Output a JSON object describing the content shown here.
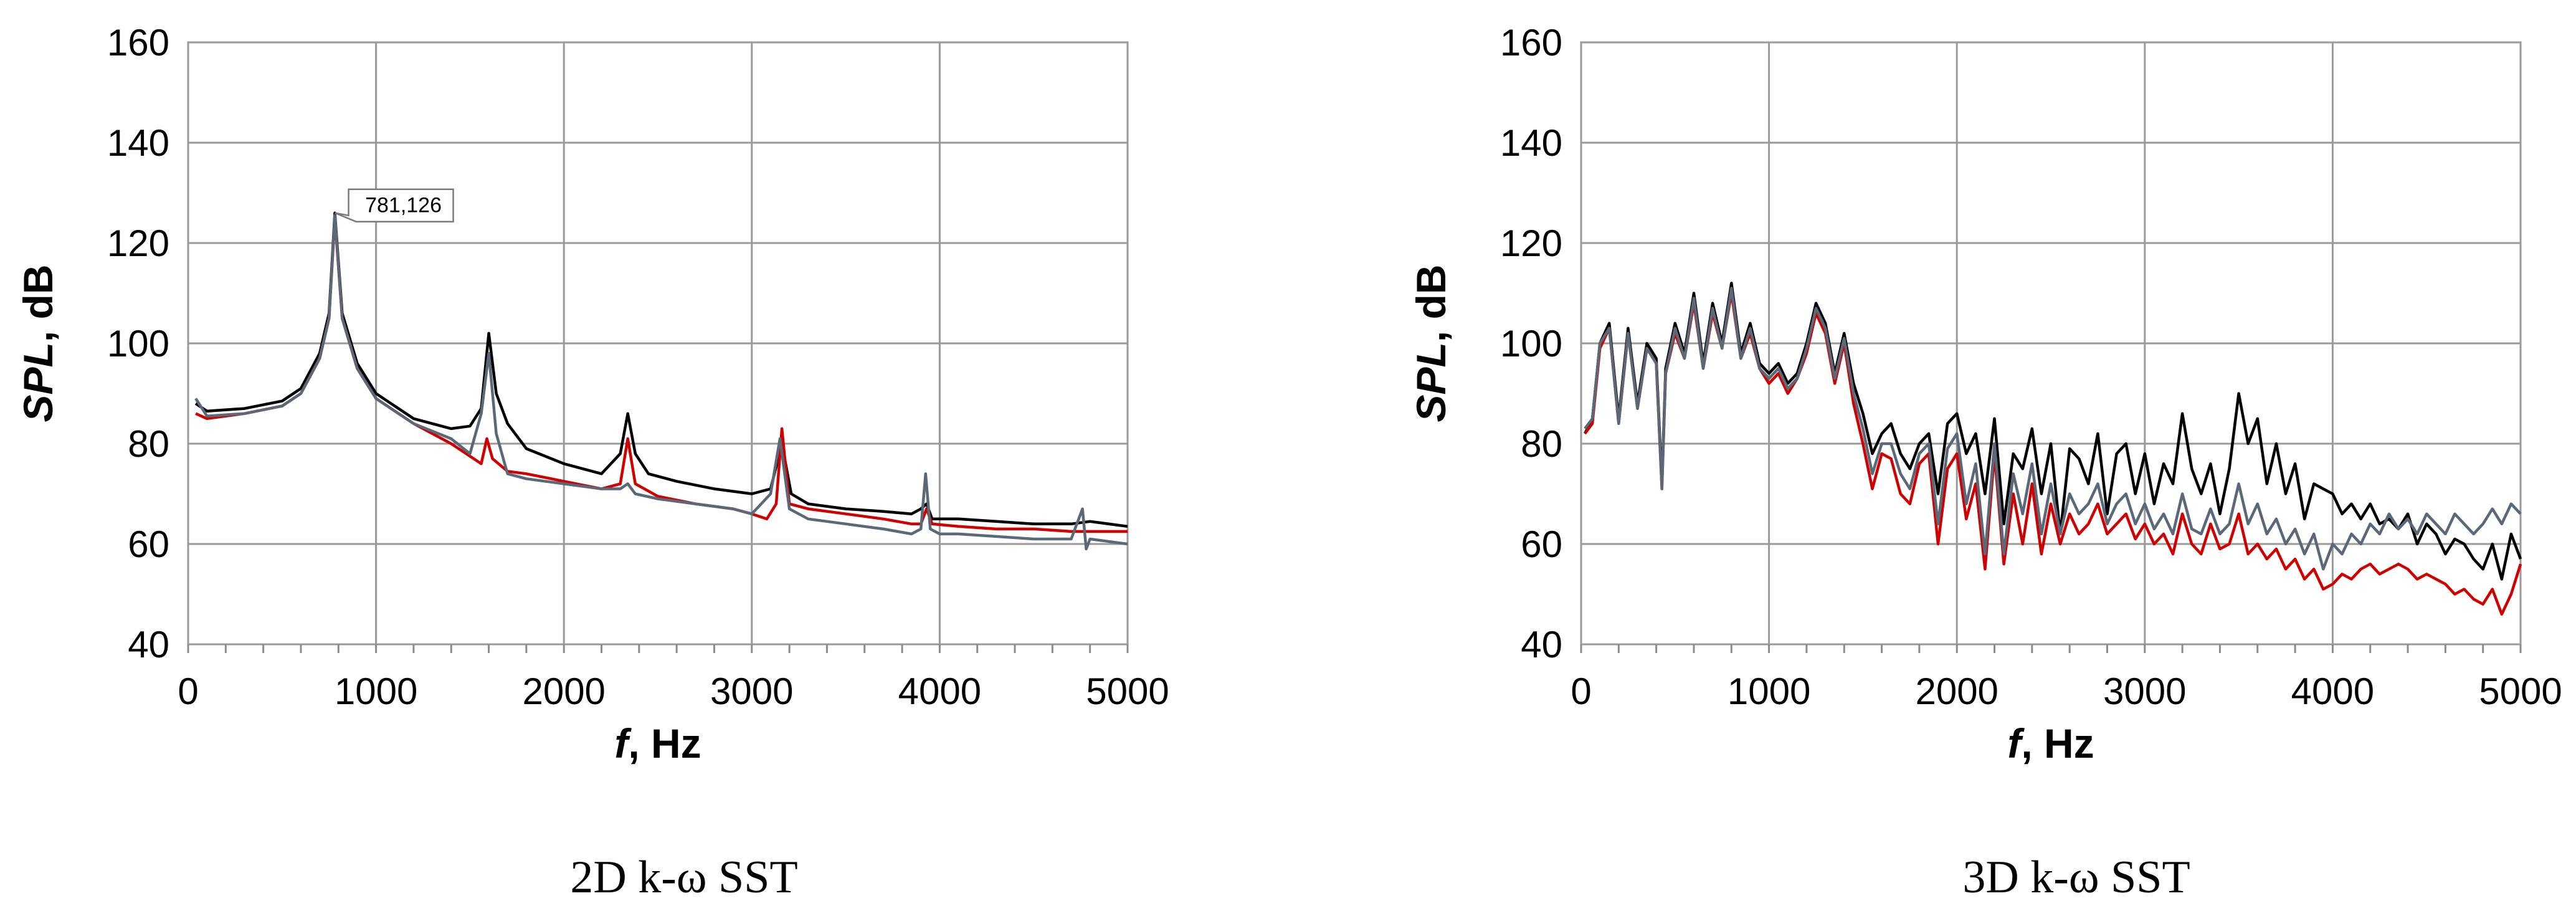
{
  "chart_data": [
    {
      "type": "line",
      "caption": "2D k-ω SST",
      "xlabel_italic": "f",
      "xlabel_rest": ", Hz",
      "ylabel_italic": "SPL",
      "ylabel_rest": ", dB",
      "xlim": [
        0,
        5000
      ],
      "ylim": [
        40,
        160
      ],
      "xticks": [
        0,
        1000,
        2000,
        3000,
        4000,
        5000
      ],
      "yticks": [
        40,
        60,
        80,
        100,
        120,
        140,
        160
      ],
      "grid": true,
      "annotations": [
        {
          "label": "781,126",
          "x": 781,
          "y": 126
        }
      ],
      "series": [
        {
          "color": "#000000",
          "x": [
            40,
            100,
            300,
            500,
            600,
            700,
            750,
            781,
            820,
            900,
            1000,
            1200,
            1400,
            1500,
            1560,
            1600,
            1640,
            1700,
            1800,
            2000,
            2200,
            2300,
            2340,
            2380,
            2450,
            2600,
            2800,
            3000,
            3100,
            3160,
            3210,
            3300,
            3500,
            3700,
            3850,
            3900,
            3930,
            3960,
            4100,
            4300,
            4500,
            4700,
            4800,
            5000
          ],
          "y": [
            88,
            86.5,
            87,
            88.5,
            91,
            98,
            106,
            126,
            106,
            96,
            90,
            85,
            83,
            83.5,
            87,
            102,
            90,
            84,
            79,
            76,
            74,
            78,
            86,
            78,
            74,
            72.5,
            71,
            70,
            71,
            80,
            70,
            68,
            67,
            66.5,
            66,
            67,
            68,
            65,
            65,
            64.5,
            64,
            64,
            64.5,
            63.5
          ]
        },
        {
          "color": "#d00000",
          "x": [
            40,
            100,
            300,
            500,
            600,
            700,
            750,
            781,
            820,
            900,
            1000,
            1200,
            1400,
            1500,
            1560,
            1590,
            1620,
            1700,
            1800,
            2000,
            2200,
            2300,
            2340,
            2380,
            2500,
            2700,
            2900,
            3000,
            3080,
            3130,
            3160,
            3200,
            3300,
            3500,
            3700,
            3850,
            3900,
            3930,
            3960,
            4100,
            4300,
            4500,
            4700,
            4800,
            5000
          ],
          "y": [
            86,
            85,
            86,
            87.5,
            90,
            97,
            105,
            125,
            105,
            95,
            89,
            84,
            80,
            77.5,
            76,
            81,
            77,
            74.5,
            74,
            72.5,
            71,
            72,
            81,
            72,
            69.5,
            68,
            67,
            66,
            65,
            68,
            83,
            68,
            67,
            66,
            65,
            64,
            64,
            67,
            64,
            63.5,
            63,
            63,
            62.5,
            62.5,
            62.5
          ]
        },
        {
          "color": "#5b6878",
          "x": [
            40,
            100,
            300,
            500,
            600,
            700,
            750,
            781,
            820,
            900,
            1000,
            1200,
            1400,
            1500,
            1560,
            1600,
            1640,
            1700,
            1800,
            2000,
            2200,
            2300,
            2340,
            2380,
            2500,
            2700,
            2900,
            3000,
            3100,
            3150,
            3200,
            3300,
            3500,
            3700,
            3850,
            3900,
            3925,
            3950,
            4000,
            4100,
            4300,
            4500,
            4700,
            4760,
            4780,
            4800,
            5000
          ],
          "y": [
            89,
            85.5,
            86,
            87.5,
            90,
            97,
            105,
            125.5,
            105,
            95,
            89,
            84,
            81,
            78,
            86,
            98,
            82,
            74,
            73,
            72,
            71,
            71,
            72,
            70,
            69,
            68,
            67,
            66,
            70,
            81,
            67,
            65,
            64,
            63,
            62,
            63,
            74,
            63,
            62,
            62,
            61.5,
            61,
            61,
            67,
            59,
            61,
            60
          ]
        }
      ]
    },
    {
      "type": "line",
      "caption": "3D k-ω SST",
      "xlabel_italic": "f",
      "xlabel_rest": ", Hz",
      "ylabel_italic": "SPL",
      "ylabel_rest": ", dB",
      "xlim": [
        0,
        5000
      ],
      "ylim": [
        40,
        160
      ],
      "xticks": [
        0,
        1000,
        2000,
        3000,
        4000,
        5000
      ],
      "yticks": [
        40,
        60,
        80,
        100,
        120,
        140,
        160
      ],
      "grid": true,
      "series": [
        {
          "color": "#000000",
          "x": [
            20,
            60,
            100,
            150,
            200,
            250,
            300,
            350,
            400,
            430,
            450,
            500,
            550,
            600,
            650,
            700,
            750,
            800,
            850,
            900,
            950,
            1000,
            1050,
            1100,
            1150,
            1200,
            1250,
            1300,
            1350,
            1400,
            1450,
            1500,
            1550,
            1600,
            1650,
            1700,
            1750,
            1800,
            1850,
            1900,
            1950,
            2000,
            2050,
            2100,
            2150,
            2200,
            2250,
            2300,
            2350,
            2400,
            2450,
            2500,
            2550,
            2600,
            2650,
            2700,
            2750,
            2800,
            2850,
            2900,
            2950,
            3000,
            3050,
            3100,
            3150,
            3200,
            3250,
            3300,
            3350,
            3400,
            3450,
            3500,
            3550,
            3600,
            3650,
            3700,
            3750,
            3800,
            3850,
            3900,
            3950,
            4000,
            4050,
            4100,
            4150,
            4200,
            4250,
            4300,
            4350,
            4400,
            4450,
            4500,
            4550,
            4600,
            4650,
            4700,
            4750,
            4800,
            4850,
            4900,
            4950,
            5000
          ],
          "y": [
            82,
            85,
            100,
            104,
            85,
            103,
            88,
            100,
            97,
            72,
            95,
            104,
            98,
            110,
            96,
            108,
            100,
            112,
            98,
            104,
            96,
            94,
            96,
            92,
            94,
            100,
            108,
            104,
            94,
            102,
            92,
            86,
            78,
            82,
            84,
            78,
            75,
            80,
            82,
            70,
            84,
            86,
            78,
            82,
            70,
            85,
            64,
            78,
            75,
            83,
            70,
            80,
            62,
            79,
            77,
            72,
            82,
            66,
            78,
            80,
            70,
            78,
            68,
            76,
            72,
            86,
            75,
            70,
            76,
            66,
            75,
            90,
            80,
            85,
            72,
            80,
            70,
            76,
            65,
            72,
            71,
            70,
            66,
            68,
            65,
            68,
            64,
            65,
            63,
            66,
            60,
            64,
            62,
            58,
            61,
            60,
            57,
            55,
            60,
            53,
            62,
            57
          ]
        },
        {
          "color": "#d00000",
          "x": [
            20,
            60,
            100,
            150,
            200,
            250,
            300,
            350,
            400,
            430,
            450,
            500,
            550,
            600,
            650,
            700,
            750,
            800,
            850,
            900,
            950,
            1000,
            1050,
            1100,
            1150,
            1200,
            1250,
            1300,
            1350,
            1400,
            1450,
            1500,
            1550,
            1600,
            1650,
            1700,
            1750,
            1800,
            1850,
            1900,
            1950,
            2000,
            2050,
            2100,
            2150,
            2200,
            2250,
            2300,
            2350,
            2400,
            2450,
            2500,
            2550,
            2600,
            2650,
            2700,
            2750,
            2800,
            2850,
            2900,
            2950,
            3000,
            3050,
            3100,
            3150,
            3200,
            3250,
            3300,
            3350,
            3400,
            3450,
            3500,
            3550,
            3600,
            3650,
            3700,
            3750,
            3800,
            3850,
            3900,
            3950,
            4000,
            4050,
            4100,
            4150,
            4200,
            4250,
            4300,
            4350,
            4400,
            4450,
            4500,
            4550,
            4600,
            4650,
            4700,
            4750,
            4800,
            4850,
            4900,
            4950,
            5000
          ],
          "y": [
            82,
            84,
            99,
            103,
            84,
            102,
            87,
            99,
            96,
            71,
            94,
            102,
            97,
            108,
            95,
            106,
            99,
            110,
            97,
            102,
            95,
            92,
            94,
            90,
            93,
            98,
            106,
            102,
            92,
            100,
            88,
            80,
            71,
            78,
            77,
            70,
            68,
            76,
            78,
            60,
            75,
            78,
            65,
            72,
            55,
            78,
            56,
            70,
            60,
            72,
            58,
            68,
            60,
            66,
            62,
            64,
            68,
            62,
            64,
            66,
            61,
            64,
            60,
            62,
            58,
            66,
            60,
            58,
            64,
            59,
            60,
            66,
            58,
            60,
            57,
            59,
            55,
            57,
            53,
            55,
            51,
            52,
            54,
            53,
            55,
            56,
            54,
            55,
            56,
            55,
            53,
            54,
            53,
            52,
            50,
            51,
            49,
            48,
            51,
            46,
            50,
            56
          ]
        },
        {
          "color": "#5b6878",
          "x": [
            20,
            60,
            100,
            150,
            200,
            250,
            300,
            350,
            400,
            430,
            450,
            500,
            550,
            600,
            650,
            700,
            750,
            800,
            850,
            900,
            950,
            1000,
            1050,
            1100,
            1150,
            1200,
            1250,
            1300,
            1350,
            1400,
            1450,
            1500,
            1550,
            1600,
            1650,
            1700,
            1750,
            1800,
            1850,
            1900,
            1950,
            2000,
            2050,
            2100,
            2150,
            2200,
            2250,
            2300,
            2350,
            2400,
            2450,
            2500,
            2550,
            2600,
            2650,
            2700,
            2750,
            2800,
            2850,
            2900,
            2950,
            3000,
            3050,
            3100,
            3150,
            3200,
            3250,
            3300,
            3350,
            3400,
            3450,
            3500,
            3550,
            3600,
            3650,
            3700,
            3750,
            3800,
            3850,
            3900,
            3950,
            4000,
            4050,
            4100,
            4150,
            4200,
            4250,
            4300,
            4350,
            4400,
            4450,
            4500,
            4550,
            4600,
            4650,
            4700,
            4750,
            4800,
            4850,
            4900,
            4950,
            5000
          ],
          "y": [
            83,
            85,
            100,
            103,
            84,
            102,
            87,
            99,
            96,
            71,
            94,
            103,
            97,
            109,
            95,
            107,
            99,
            111,
            97,
            103,
            95,
            93,
            95,
            91,
            93,
            99,
            107,
            103,
            93,
            101,
            90,
            83,
            74,
            80,
            80,
            74,
            71,
            78,
            80,
            64,
            79,
            82,
            68,
            76,
            58,
            80,
            58,
            74,
            66,
            76,
            62,
            72,
            62,
            70,
            66,
            68,
            72,
            64,
            68,
            70,
            64,
            68,
            63,
            66,
            62,
            70,
            63,
            62,
            67,
            62,
            64,
            72,
            64,
            68,
            62,
            65,
            60,
            63,
            58,
            62,
            55,
            60,
            58,
            62,
            60,
            64,
            62,
            66,
            63,
            65,
            62,
            66,
            64,
            62,
            66,
            64,
            62,
            64,
            67,
            64,
            68,
            66
          ]
        }
      ]
    }
  ]
}
